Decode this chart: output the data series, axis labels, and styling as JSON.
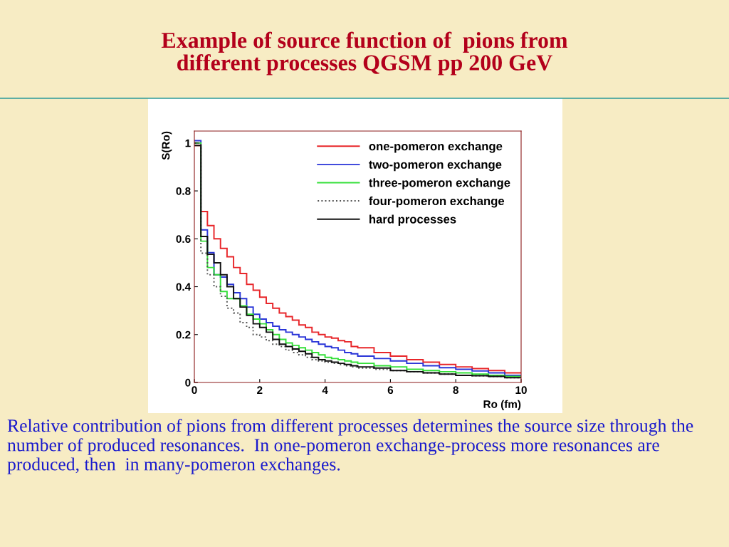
{
  "chart_data": {
    "type": "histogram",
    "title": "Example of source function of  pions from\ndifferent processes QGSM pp 200 GeV",
    "xlabel": "Ro (fm)",
    "ylabel": "S(Ro)",
    "bins": [
      0,
      0.2,
      0.4,
      0.6,
      0.8,
      1.0,
      1.2,
      1.4,
      1.6,
      1.8,
      2.0,
      2.2,
      2.4,
      2.6,
      2.8,
      3.0,
      3.2,
      3.4,
      3.6,
      3.8,
      4.0,
      4.2,
      4.4,
      4.6,
      4.8,
      5.0,
      5.5,
      6.0,
      6.5,
      7.0,
      7.5,
      8.0,
      8.5,
      9.0,
      9.5,
      10
    ],
    "series": [
      {
        "name": "one-pomeron exchange",
        "color": "#e8262a",
        "line_style": "solid",
        "values": [
          0.99,
          0.714,
          0.655,
          0.6,
          0.56,
          0.525,
          0.48,
          0.455,
          0.41,
          0.385,
          0.356,
          0.33,
          0.31,
          0.29,
          0.275,
          0.26,
          0.24,
          0.23,
          0.21,
          0.2,
          0.19,
          0.185,
          0.175,
          0.17,
          0.15,
          0.145,
          0.125,
          0.11,
          0.095,
          0.085,
          0.075,
          0.065,
          0.058,
          0.05,
          0.04
        ]
      },
      {
        "name": "two-pomeron exchange",
        "color": "#2a35d8",
        "line_style": "solid",
        "values": [
          1.01,
          0.637,
          0.542,
          0.45,
          0.44,
          0.41,
          0.375,
          0.35,
          0.315,
          0.285,
          0.265,
          0.25,
          0.235,
          0.22,
          0.21,
          0.2,
          0.19,
          0.18,
          0.17,
          0.16,
          0.15,
          0.145,
          0.135,
          0.125,
          0.12,
          0.11,
          0.1,
          0.09,
          0.08,
          0.07,
          0.062,
          0.055,
          0.048,
          0.04,
          0.03
        ]
      },
      {
        "name": "three-pomeron exchange",
        "color": "#35e03a",
        "line_style": "solid",
        "values": [
          1.0,
          0.59,
          0.48,
          0.45,
          0.38,
          0.35,
          0.35,
          0.32,
          0.285,
          0.265,
          0.245,
          0.22,
          0.2,
          0.18,
          0.165,
          0.155,
          0.145,
          0.135,
          0.125,
          0.115,
          0.105,
          0.1,
          0.095,
          0.09,
          0.085,
          0.08,
          0.07,
          0.065,
          0.055,
          0.05,
          0.045,
          0.04,
          0.035,
          0.03,
          0.025
        ]
      },
      {
        "name": "four-pomeron exchange",
        "color": "#555555",
        "line_style": "dotted",
        "values": [
          1.0,
          0.54,
          0.45,
          0.4,
          0.36,
          0.31,
          0.29,
          0.25,
          0.23,
          0.2,
          0.19,
          0.175,
          0.16,
          0.15,
          0.135,
          0.125,
          0.115,
          0.105,
          0.095,
          0.09,
          0.085,
          0.08,
          0.075,
          0.07,
          0.065,
          0.06,
          0.055,
          0.05,
          0.045,
          0.04,
          0.035,
          0.03,
          0.028,
          0.025,
          0.02
        ]
      },
      {
        "name": "hard processes",
        "color": "#111111",
        "line_style": "solid",
        "values": [
          0.99,
          0.61,
          0.535,
          0.5,
          0.45,
          0.4,
          0.35,
          0.315,
          0.28,
          0.245,
          0.23,
          0.21,
          0.18,
          0.16,
          0.15,
          0.14,
          0.13,
          0.12,
          0.105,
          0.095,
          0.09,
          0.085,
          0.08,
          0.075,
          0.07,
          0.065,
          0.06,
          0.05,
          0.045,
          0.04,
          0.035,
          0.03,
          0.028,
          0.025,
          0.02
        ]
      }
    ],
    "xlim": [
      0,
      10
    ],
    "ylim": [
      0,
      1.05
    ],
    "xticks": [
      0,
      2,
      4,
      6,
      8,
      10
    ],
    "yticks": [
      0,
      0.2,
      0.4,
      0.6,
      0.8,
      1
    ],
    "grid": false,
    "legend": "top right",
    "annotations": [
      "Relative contribution of pions from different processes determines the source size through the number of produced resonances.  In one-pomeron exchange-process more resonances are produced, then  in many-pomeron exchanges."
    ]
  }
}
